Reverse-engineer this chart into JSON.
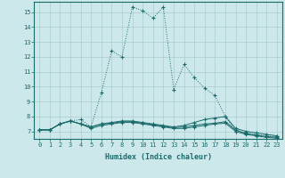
{
  "xlabel": "Humidex (Indice chaleur)",
  "bg_color": "#cce8ea",
  "grid_color": "#b0d4d8",
  "line_color": "#1a6b6b",
  "xlim": [
    -0.5,
    23.5
  ],
  "ylim": [
    6.5,
    15.7
  ],
  "yticks": [
    7,
    8,
    9,
    10,
    11,
    12,
    13,
    14,
    15
  ],
  "xticks": [
    0,
    1,
    2,
    3,
    4,
    5,
    6,
    7,
    8,
    9,
    10,
    11,
    12,
    13,
    14,
    15,
    16,
    17,
    18,
    19,
    20,
    21,
    22,
    23
  ],
  "series": [
    [
      7.1,
      7.1,
      7.5,
      7.7,
      7.8,
      7.3,
      9.6,
      12.4,
      12.0,
      15.35,
      15.1,
      14.6,
      15.35,
      9.8,
      11.5,
      10.6,
      9.9,
      9.4,
      8.0,
      7.0,
      6.9,
      6.8,
      6.7,
      6.65
    ],
    [
      7.1,
      7.1,
      7.5,
      7.7,
      7.5,
      7.3,
      7.5,
      7.6,
      7.7,
      7.7,
      7.6,
      7.5,
      7.4,
      7.3,
      7.4,
      7.6,
      7.8,
      7.9,
      8.0,
      7.2,
      7.0,
      6.9,
      6.8,
      6.7
    ],
    [
      7.1,
      7.1,
      7.5,
      7.7,
      7.5,
      7.3,
      7.5,
      7.55,
      7.65,
      7.65,
      7.55,
      7.45,
      7.35,
      7.25,
      7.3,
      7.4,
      7.5,
      7.55,
      7.65,
      7.1,
      6.85,
      6.75,
      6.65,
      6.6
    ],
    [
      7.1,
      7.1,
      7.5,
      7.7,
      7.5,
      7.2,
      7.4,
      7.5,
      7.6,
      7.6,
      7.5,
      7.4,
      7.3,
      7.2,
      7.2,
      7.3,
      7.4,
      7.5,
      7.55,
      7.0,
      6.8,
      6.7,
      6.6,
      6.55
    ]
  ]
}
